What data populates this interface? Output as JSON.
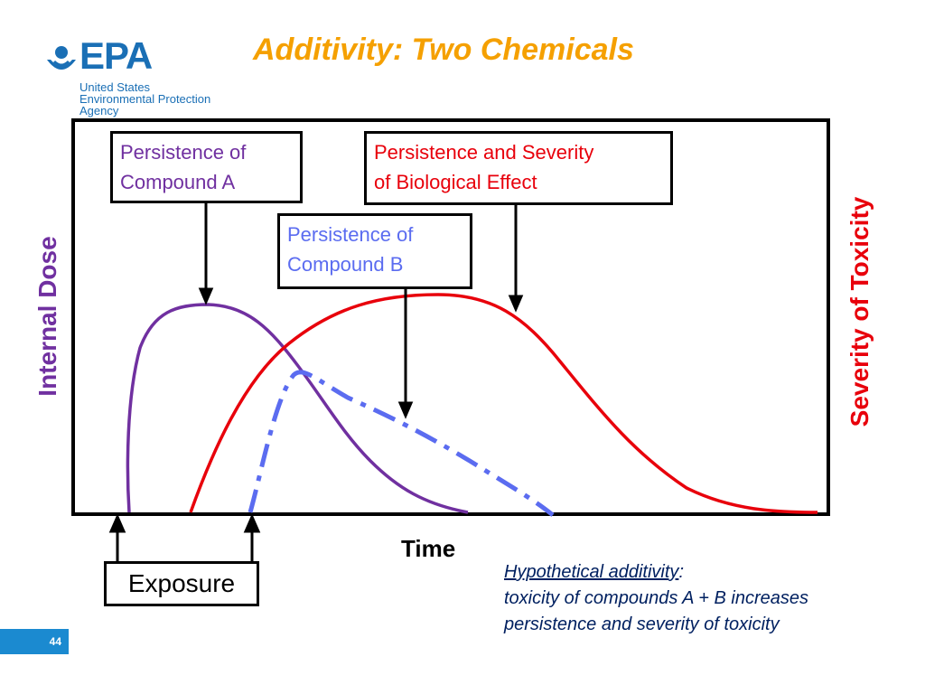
{
  "title": "Additivity:  Two Chemicals",
  "logo": {
    "word": "EPA",
    "line1": "United States",
    "line2": "Environmental Protection",
    "line3": "Agency"
  },
  "axes": {
    "y_left": "Internal Dose",
    "y_right": "Severity of Toxicity",
    "x": "Time"
  },
  "callouts": {
    "compound_a": [
      "Persistence of",
      "Compound A"
    ],
    "biological_effect": [
      "Persistence and Severity",
      "of Biological Effect"
    ],
    "compound_b": [
      "Persistence of",
      "Compound B"
    ]
  },
  "exposure_label": "Exposure",
  "note": {
    "heading": "Hypothetical additivity",
    "heading_suffix": ":",
    "line1": "toxicity of compounds A + B increases",
    "line2": "persistence and severity of toxicity"
  },
  "page_number": "44",
  "colors": {
    "compound_a": "#7030a0",
    "compound_b": "#5b6cf0",
    "effect": "#e8000b",
    "title": "#f5a000",
    "epa_blue": "#1a6fb5"
  }
}
